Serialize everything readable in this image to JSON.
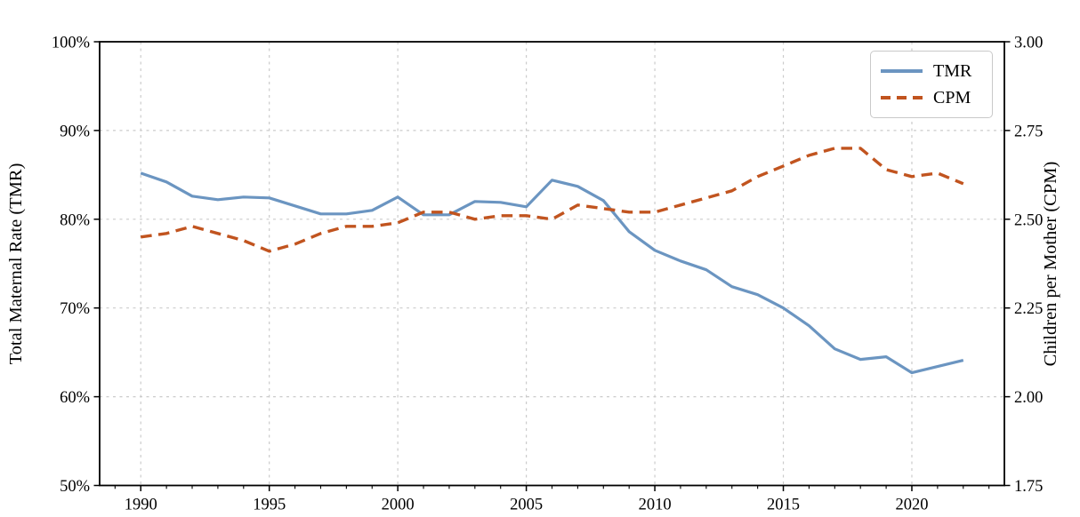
{
  "page": {
    "background": "#ffffff"
  },
  "chart_data": {
    "type": "line",
    "title": "",
    "x": [
      1990,
      1991,
      1992,
      1993,
      1994,
      1995,
      1996,
      1997,
      1998,
      1999,
      2000,
      2001,
      2002,
      2003,
      2004,
      2005,
      2006,
      2007,
      2008,
      2009,
      2010,
      2011,
      2012,
      2013,
      2014,
      2015,
      2016,
      2017,
      2018,
      2019,
      2020,
      2021,
      2022
    ],
    "series": [
      {
        "name": "TMR",
        "axis": "left",
        "line_style": "solid",
        "color": "#6b95c1",
        "values": [
          85.2,
          84.2,
          82.6,
          82.2,
          82.5,
          82.4,
          81.5,
          80.6,
          80.6,
          81.0,
          82.5,
          80.5,
          80.5,
          82.0,
          81.9,
          81.4,
          84.4,
          83.7,
          82.1,
          78.6,
          76.5,
          75.3,
          74.3,
          72.4,
          71.5,
          70.0,
          68.0,
          65.4,
          64.2,
          64.5,
          62.7,
          63.4,
          64.1
        ]
      },
      {
        "name": "CPM",
        "axis": "right",
        "line_style": "dashed",
        "color": "#c1541f",
        "values": [
          2.45,
          2.46,
          2.48,
          2.46,
          2.44,
          2.41,
          2.43,
          2.46,
          2.48,
          2.48,
          2.49,
          2.52,
          2.52,
          2.5,
          2.51,
          2.51,
          2.5,
          2.54,
          2.53,
          2.52,
          2.52,
          2.54,
          2.56,
          2.58,
          2.62,
          2.65,
          2.68,
          2.7,
          2.7,
          2.64,
          2.62,
          2.63,
          2.6
        ]
      }
    ],
    "x_axis": {
      "lim": [
        1988.4,
        2023.6
      ],
      "major_ticks": [
        1990,
        1995,
        2000,
        2005,
        2010,
        2015,
        2020
      ],
      "major_tick_labels": [
        "1990",
        "1995",
        "2000",
        "2005",
        "2010",
        "2015",
        "2020"
      ],
      "minor_tick_range": [
        1989,
        2023
      ],
      "minor_tick_step": 1
    },
    "left_axis": {
      "label": "Total Maternal Rate (TMR)",
      "lim": [
        50,
        100
      ],
      "tick_values": [
        100,
        90,
        80,
        70,
        60,
        50
      ],
      "tick_labels": [
        "100%",
        "90%",
        "80%",
        "70%",
        "60%",
        "50%"
      ],
      "grid_values": [
        90,
        80,
        70,
        60
      ]
    },
    "right_axis": {
      "label": "Children per Mother (CPM)",
      "lim": [
        1.75,
        3.0
      ],
      "tick_values": [
        3.0,
        2.75,
        2.5,
        2.25,
        2.0,
        1.75
      ],
      "tick_labels": [
        "3.00",
        "2.75",
        "2.50",
        "2.25",
        "2.00",
        "1.75"
      ]
    },
    "legend": {
      "position": "upper-right",
      "entries": [
        {
          "label": "TMR",
          "style": "solid"
        },
        {
          "label": "CPM",
          "style": "dashed"
        }
      ]
    },
    "grid": {
      "show": true,
      "color": "#cbcbcb",
      "style": "dashed"
    }
  },
  "colors": {
    "axis": "#000000",
    "text": "#000000",
    "background": "#ffffff"
  }
}
